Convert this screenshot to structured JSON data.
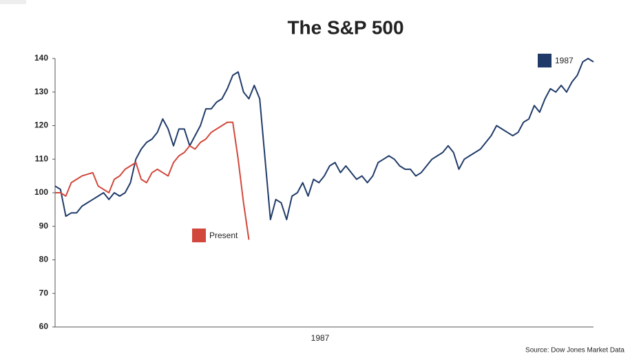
{
  "chart_data": {
    "type": "line",
    "title": "The S&P 500",
    "x_label": "1987",
    "source": "Source: Dow Jones Market Data",
    "ylim": [
      60,
      140
    ],
    "yticks": [
      60,
      70,
      80,
      90,
      100,
      110,
      120,
      130,
      140
    ],
    "series": [
      {
        "name": "1987",
        "color": "#1f3a68",
        "values": [
          102,
          101,
          93,
          94,
          94,
          96,
          97,
          98,
          99,
          100,
          98,
          100,
          99,
          100,
          103,
          110,
          113,
          115,
          116,
          118,
          122,
          119,
          114,
          119,
          119,
          114,
          117,
          120,
          125,
          125,
          127,
          128,
          131,
          135,
          136,
          130,
          128,
          132,
          128,
          110,
          92,
          98,
          97,
          92,
          99,
          100,
          103,
          99,
          104,
          103,
          105,
          108,
          109,
          106,
          108,
          106,
          104,
          105,
          103,
          105,
          109,
          110,
          111,
          110,
          108,
          107,
          107,
          105,
          106,
          108,
          110,
          111,
          112,
          114,
          112,
          107,
          110,
          111,
          112,
          113,
          115,
          117,
          120,
          119,
          118,
          117,
          118,
          121,
          122,
          126,
          124,
          128,
          131,
          130,
          132,
          130,
          133,
          135,
          139,
          140,
          139
        ]
      },
      {
        "name": "Present",
        "color": "#d2473b",
        "values": [
          100,
          100,
          99,
          103,
          104,
          105,
          105.5,
          106,
          102,
          101,
          100,
          104,
          105,
          107,
          108,
          109,
          104,
          103,
          106,
          107,
          106,
          105,
          109,
          111,
          112,
          114,
          113,
          115,
          116,
          118,
          119,
          120,
          121,
          121,
          110,
          97,
          86,
          null,
          null,
          null,
          null,
          null,
          null,
          null,
          null,
          null,
          null,
          null,
          null,
          null,
          null,
          null,
          null,
          null,
          null,
          null,
          null,
          null,
          null,
          null,
          null,
          null,
          null,
          null,
          null,
          null,
          null,
          null,
          null,
          null,
          null,
          null,
          null,
          null,
          null,
          null,
          null,
          null,
          null,
          null,
          null,
          null,
          null,
          null,
          null,
          null,
          null,
          null,
          null,
          null,
          null,
          null,
          null,
          null,
          null,
          null,
          null,
          null,
          null,
          null,
          null
        ]
      }
    ]
  }
}
